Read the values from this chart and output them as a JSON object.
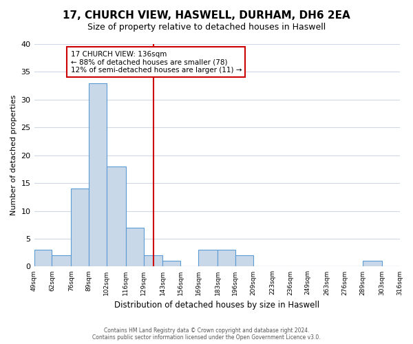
{
  "title": "17, CHURCH VIEW, HASWELL, DURHAM, DH6 2EA",
  "subtitle": "Size of property relative to detached houses in Haswell",
  "xlabel": "Distribution of detached houses by size in Haswell",
  "ylabel": "Number of detached properties",
  "bin_edges": [
    49,
    62,
    76,
    89,
    102,
    116,
    129,
    143,
    156,
    169,
    183,
    196,
    209,
    223,
    236,
    249,
    263,
    276,
    289,
    303,
    316
  ],
  "bin_labels": [
    "49sqm",
    "62sqm",
    "76sqm",
    "89sqm",
    "102sqm",
    "116sqm",
    "129sqm",
    "143sqm",
    "156sqm",
    "169sqm",
    "183sqm",
    "196sqm",
    "209sqm",
    "223sqm",
    "236sqm",
    "249sqm",
    "263sqm",
    "276sqm",
    "289sqm",
    "303sqm",
    "316sqm"
  ],
  "counts": [
    3,
    2,
    14,
    33,
    18,
    7,
    2,
    1,
    0,
    3,
    3,
    2,
    0,
    0,
    0,
    0,
    0,
    0,
    1,
    0
  ],
  "bar_color": "#c8d8e8",
  "bar_edge_color": "#5b9bd5",
  "vline_x": 136,
  "vline_color": "#cc0000",
  "ylim": [
    0,
    40
  ],
  "yticks": [
    0,
    5,
    10,
    15,
    20,
    25,
    30,
    35,
    40
  ],
  "annotation_title": "17 CHURCH VIEW: 136sqm",
  "annotation_line1": "← 88% of detached houses are smaller (78)",
  "annotation_line2": "12% of semi-detached houses are larger (11) →",
  "annotation_box_color": "#ffffff",
  "annotation_box_edge": "#cc0000",
  "footer_line1": "Contains HM Land Registry data © Crown copyright and database right 2024.",
  "footer_line2": "Contains public sector information licensed under the Open Government Licence v3.0.",
  "background_color": "#ffffff",
  "grid_color": "#d0d8e8"
}
